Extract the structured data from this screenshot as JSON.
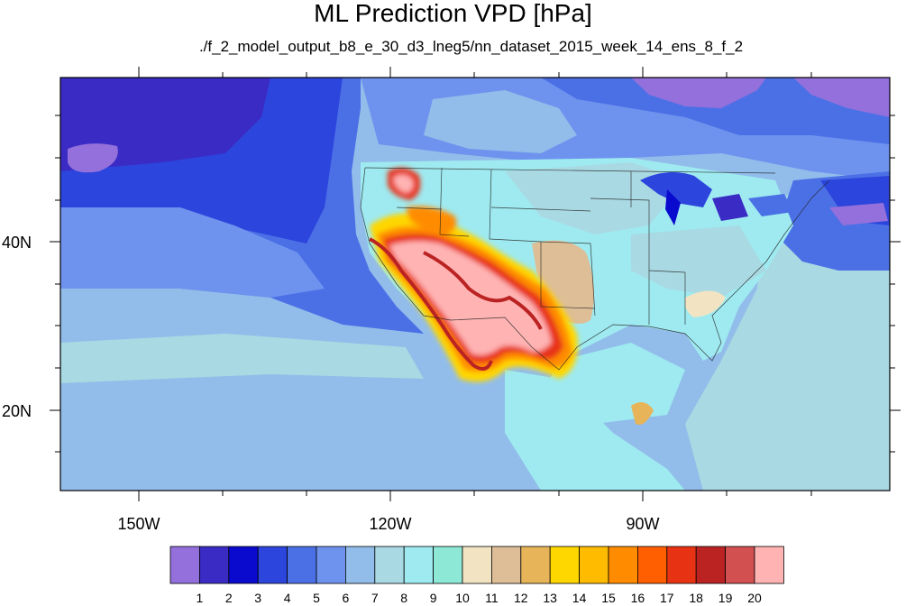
{
  "title": "ML Prediction VPD [hPa]",
  "subtitle": "./f_2_model_output_b8_e_30_d3_lneg5/nn_dataset_2015_week_14_ens_8_f_2",
  "lat_labels": [
    "40N",
    "20N"
  ],
  "lon_labels": [
    "150W",
    "120W",
    "90W"
  ],
  "colorbar": {
    "labels": [
      "1",
      "2",
      "3",
      "4",
      "5",
      "6",
      "7",
      "8",
      "9",
      "10",
      "11",
      "12",
      "13",
      "14",
      "15",
      "16",
      "17",
      "18",
      "19",
      "20"
    ],
    "colors": [
      "#9370DB",
      "#3A2BC4",
      "#0A0ACF",
      "#2C45DD",
      "#4B70E6",
      "#6E93EE",
      "#92BDEA",
      "#A9D9E2",
      "#9EEAF0",
      "#8EE8D6",
      "#F2E4C3",
      "#DDBE96",
      "#E7B45A",
      "#FFD700",
      "#FFBB00",
      "#FF8C00",
      "#FF5F00",
      "#E83214",
      "#BB2323",
      "#D25050",
      "#FFB3B3"
    ]
  }
}
